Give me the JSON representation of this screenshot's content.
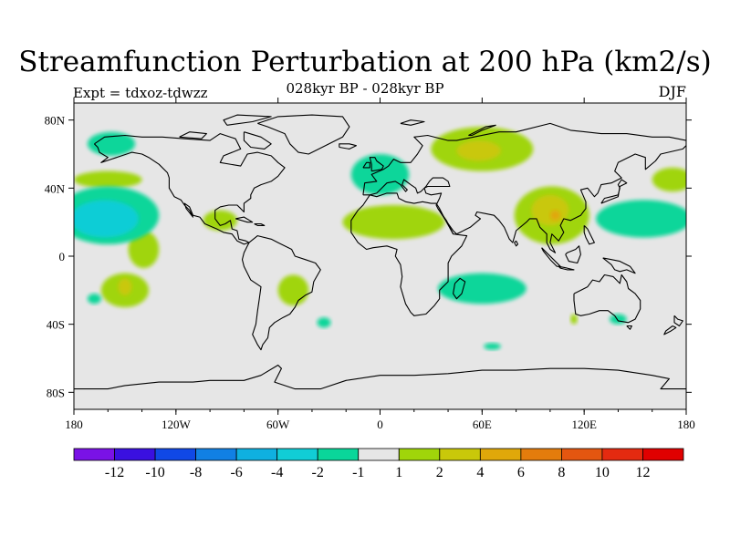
{
  "title": "Streamfunction Perturbation at 200 hPa (km2/s)",
  "subtitle": "028kyr BP - 028kyr BP",
  "experiment": "Expt = tdxoz-tdwzz",
  "season": "DJF",
  "colors": {
    "ocean_background": "#e6e6e6",
    "coastline": "#000000"
  },
  "map": {
    "projection": "cylindrical-equidistant",
    "lon_range": [
      -180,
      180
    ],
    "lat_range": [
      -90,
      90
    ],
    "x_ticks": [
      {
        "lon": -180,
        "label": "180"
      },
      {
        "lon": -120,
        "label": "120W"
      },
      {
        "lon": -60,
        "label": "60W"
      },
      {
        "lon": 0,
        "label": "0"
      },
      {
        "lon": 60,
        "label": "60E"
      },
      {
        "lon": 120,
        "label": "120E"
      },
      {
        "lon": 180,
        "label": "180"
      }
    ],
    "y_ticks": [
      {
        "lat": 80,
        "label": "80N"
      },
      {
        "lat": 40,
        "label": "40N"
      },
      {
        "lat": 0,
        "label": "0"
      },
      {
        "lat": -40,
        "label": "40S"
      },
      {
        "lat": -80,
        "label": "80S"
      }
    ],
    "anomalies": [
      {
        "name": "central-pacific-negative",
        "lon": -162,
        "lat": 22,
        "rlon": 20,
        "rlat": 11,
        "level": -3
      },
      {
        "name": "central-pacific-weak-negative",
        "lon": -160,
        "lat": 24,
        "rlon": 30,
        "rlat": 17,
        "level": -2
      },
      {
        "name": "north-pacific-positive",
        "lon": -160,
        "lat": 45,
        "rlon": 20,
        "rlat": 5,
        "level": 1
      },
      {
        "name": "greenland-negative",
        "lon": -158,
        "lat": 66,
        "rlon": 14,
        "rlat": 7,
        "level": -2
      },
      {
        "name": "caribbean-positive",
        "lon": -94,
        "lat": 21,
        "rlon": 10,
        "rlat": 6,
        "level": 1
      },
      {
        "name": "south-pacific-positive",
        "lon": -150,
        "lat": -20,
        "rlon": 14,
        "rlat": 10,
        "level": 1
      },
      {
        "name": "south-pacific-core",
        "lon": -150,
        "lat": -18,
        "rlon": 4,
        "rlat": 5,
        "level": 2
      },
      {
        "name": "east-pacific-positive",
        "lon": -139,
        "lat": 4,
        "rlon": 9,
        "rlat": 11,
        "level": 1
      },
      {
        "name": "south-pacific-west-negative",
        "lon": -168,
        "lat": -25,
        "rlon": 4,
        "rlat": 3,
        "level": -2
      },
      {
        "name": "south-america-positive",
        "lon": -51,
        "lat": -20,
        "rlon": 9,
        "rlat": 9,
        "level": 1
      },
      {
        "name": "south-atlantic-negative",
        "lon": -33,
        "lat": -39,
        "rlon": 4,
        "rlat": 3,
        "level": -2
      },
      {
        "name": "atlantic-africa-positive",
        "lon": 8,
        "lat": 20,
        "rlon": 30,
        "rlat": 10,
        "level": 1
      },
      {
        "name": "europe-negative",
        "lon": 0,
        "lat": 48,
        "rlon": 17,
        "rlat": 12,
        "level": -2
      },
      {
        "name": "siberia-positive",
        "lon": 60,
        "lat": 63,
        "rlon": 30,
        "rlat": 13,
        "level": 1
      },
      {
        "name": "siberia-core",
        "lon": 58,
        "lat": 62,
        "rlon": 13,
        "rlat": 6,
        "level": 2
      },
      {
        "name": "tibet-positive",
        "lon": 101,
        "lat": 24,
        "rlon": 22,
        "rlat": 17,
        "level": 1
      },
      {
        "name": "tibet-core",
        "lon": 100,
        "lat": 27,
        "rlon": 11,
        "rlat": 9,
        "level": 2
      },
      {
        "name": "tibet-peak",
        "lon": 103,
        "lat": 24,
        "rlon": 3,
        "rlat": 3,
        "level": 4
      },
      {
        "name": "west-pacific-negative",
        "lon": 155,
        "lat": 22,
        "rlon": 28,
        "rlat": 11,
        "level": -2
      },
      {
        "name": "north-pacific-west-positive",
        "lon": 172,
        "lat": 45,
        "rlon": 12,
        "rlat": 7,
        "level": 1
      },
      {
        "name": "indian-ocean-negative",
        "lon": 60,
        "lat": -19,
        "rlon": 26,
        "rlat": 9,
        "level": -2
      },
      {
        "name": "southern-ocean-negative",
        "lon": 66,
        "lat": -53,
        "rlon": 5,
        "rlat": 2,
        "level": -2
      },
      {
        "name": "australia-south-negative",
        "lon": 140,
        "lat": -37,
        "rlon": 5,
        "rlat": 3,
        "level": -2
      },
      {
        "name": "indian-ocean-small-positive",
        "lon": 114,
        "lat": -37,
        "rlon": 2,
        "rlat": 3,
        "level": 1
      }
    ]
  },
  "colorbar": {
    "boxes": [
      {
        "color": "#7a12e6",
        "label": "-12"
      },
      {
        "color": "#3a10e0",
        "label": "-10"
      },
      {
        "color": "#1048e6",
        "label": "-8"
      },
      {
        "color": "#1180e4",
        "label": "-6"
      },
      {
        "color": "#0fb0e0",
        "label": "-4"
      },
      {
        "color": "#11cdd6",
        "label": "-2"
      },
      {
        "color": "#0ad69a",
        "label": "-1"
      },
      {
        "color": "#e6e6e6",
        "label": "1"
      },
      {
        "color": "#a0d50a",
        "label": "2"
      },
      {
        "color": "#c9c80a",
        "label": "4"
      },
      {
        "color": "#e0a80a",
        "label": "6"
      },
      {
        "color": "#e47c0c",
        "label": "8"
      },
      {
        "color": "#e45610",
        "label": "10"
      },
      {
        "color": "#e42a10",
        "label": "12"
      },
      {
        "color": "#e00000",
        "label": ""
      }
    ]
  }
}
